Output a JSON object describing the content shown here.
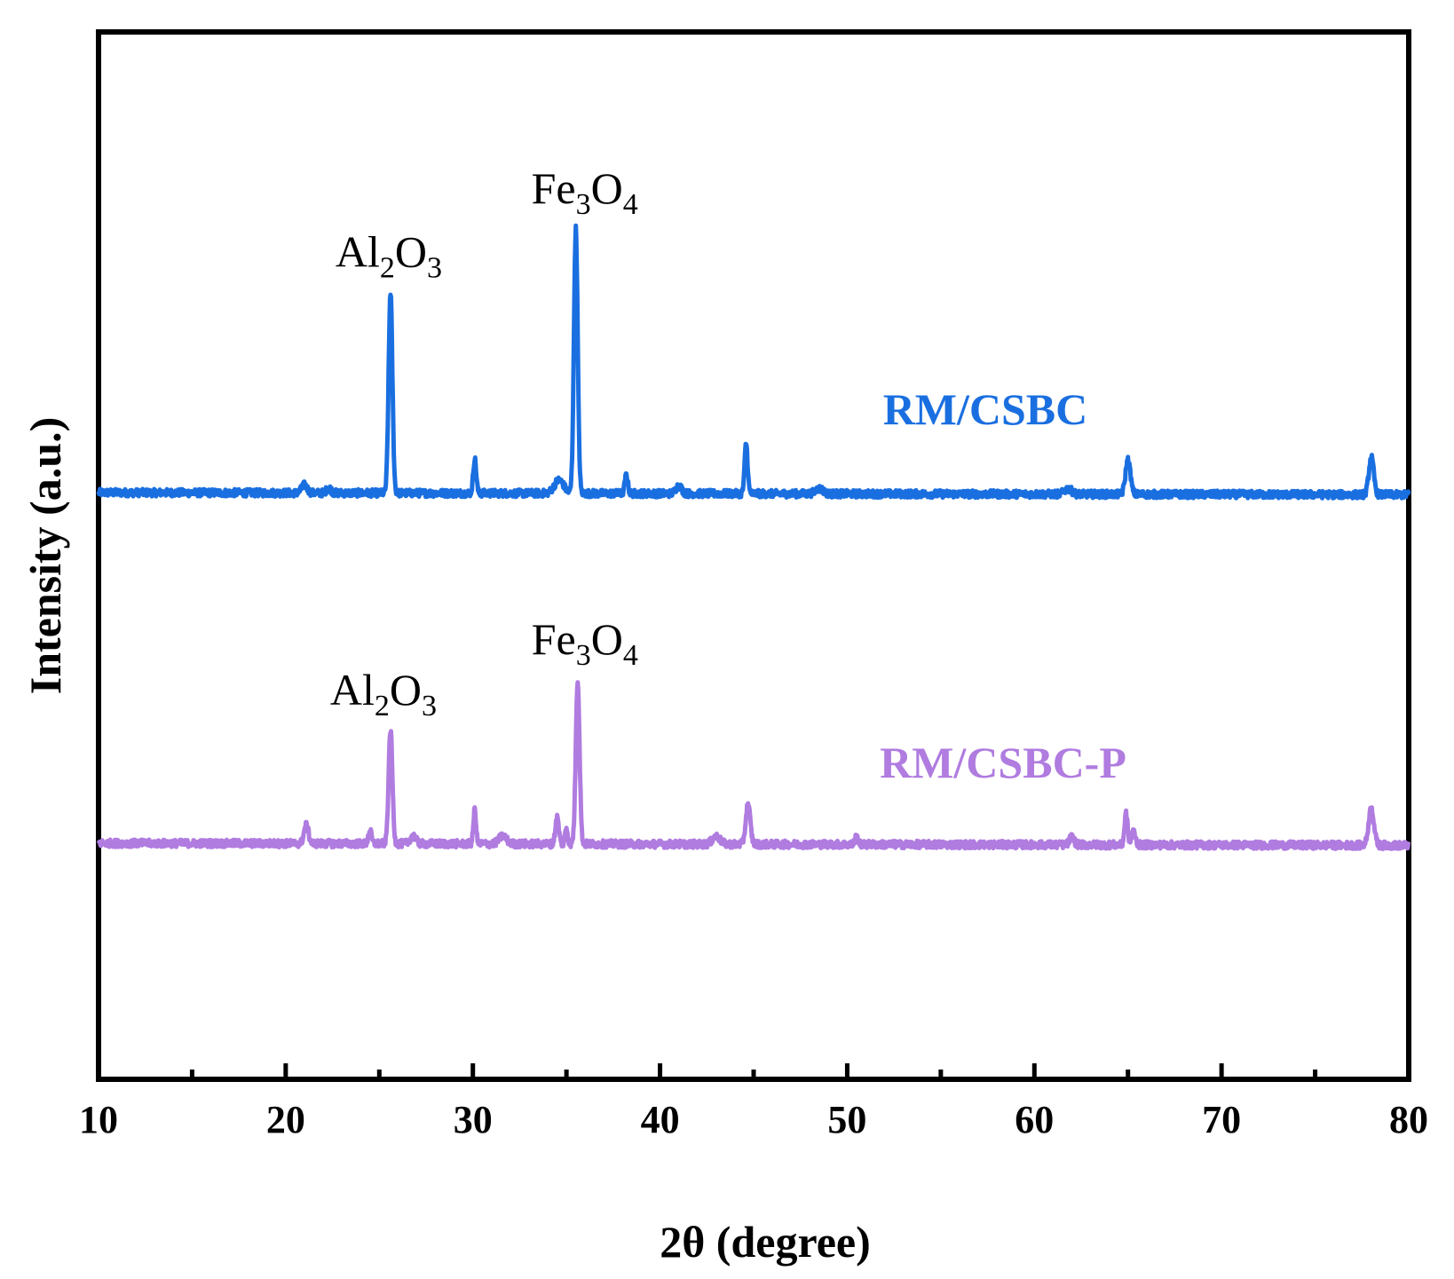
{
  "chart_data": {
    "type": "line",
    "xlabel": "2θ (degree)",
    "ylabel": "Intensity (a.u.)",
    "xlim": [
      10,
      80
    ],
    "x_ticks": [
      10,
      20,
      30,
      40,
      50,
      60,
      70,
      80
    ],
    "x_tick_labels": [
      "10",
      "20",
      "30",
      "40",
      "50",
      "60",
      "70",
      "80"
    ],
    "y_ticks_shown": false,
    "grid": false,
    "series": [
      {
        "name": "RM/CSBC",
        "color": "#1a6fe0",
        "baseline": 0.0,
        "peaks": [
          {
            "x": 21.0,
            "height": 0.03,
            "width": 0.15
          },
          {
            "x": 22.3,
            "height": 0.02,
            "width": 0.12
          },
          {
            "x": 25.6,
            "height": 0.76,
            "width": 0.1
          },
          {
            "x": 30.1,
            "height": 0.13,
            "width": 0.08
          },
          {
            "x": 34.6,
            "height": 0.05,
            "width": 0.25
          },
          {
            "x": 35.5,
            "height": 1.0,
            "width": 0.1
          },
          {
            "x": 38.2,
            "height": 0.07,
            "width": 0.08
          },
          {
            "x": 41.0,
            "height": 0.03,
            "width": 0.15
          },
          {
            "x": 44.6,
            "height": 0.19,
            "width": 0.08
          },
          {
            "x": 48.5,
            "height": 0.02,
            "width": 0.2
          },
          {
            "x": 61.8,
            "height": 0.02,
            "width": 0.2
          },
          {
            "x": 65.0,
            "height": 0.13,
            "width": 0.13
          },
          {
            "x": 78.0,
            "height": 0.14,
            "width": 0.13
          }
        ]
      },
      {
        "name": "RM/CSBC-P",
        "color": "#b07ce0",
        "baseline": 0.0,
        "peaks": [
          {
            "x": 21.1,
            "height": 0.07,
            "width": 0.12
          },
          {
            "x": 24.5,
            "height": 0.05,
            "width": 0.08
          },
          {
            "x": 25.6,
            "height": 0.43,
            "width": 0.1
          },
          {
            "x": 26.8,
            "height": 0.03,
            "width": 0.15
          },
          {
            "x": 30.1,
            "height": 0.13,
            "width": 0.07
          },
          {
            "x": 31.6,
            "height": 0.03,
            "width": 0.2
          },
          {
            "x": 34.5,
            "height": 0.1,
            "width": 0.09
          },
          {
            "x": 35.0,
            "height": 0.06,
            "width": 0.07
          },
          {
            "x": 35.6,
            "height": 0.62,
            "width": 0.1
          },
          {
            "x": 43.0,
            "height": 0.03,
            "width": 0.2
          },
          {
            "x": 44.7,
            "height": 0.15,
            "width": 0.12
          },
          {
            "x": 50.5,
            "height": 0.03,
            "width": 0.08
          },
          {
            "x": 62.0,
            "height": 0.03,
            "width": 0.12
          },
          {
            "x": 64.9,
            "height": 0.12,
            "width": 0.08
          },
          {
            "x": 65.3,
            "height": 0.05,
            "width": 0.1
          },
          {
            "x": 78.0,
            "height": 0.14,
            "width": 0.14
          }
        ]
      }
    ],
    "annotations": [
      {
        "series": "RM/CSBC",
        "x": 25.6,
        "base": "Al",
        "sub1": "2",
        "mid": "O",
        "sub2": "3"
      },
      {
        "series": "RM/CSBC",
        "x": 35.5,
        "base": "Fe",
        "sub1": "3",
        "mid": "O",
        "sub2": "4"
      },
      {
        "series": "RM/CSBC-P",
        "x": 25.6,
        "base": "Al",
        "sub1": "2",
        "mid": "O",
        "sub2": "3"
      },
      {
        "series": "RM/CSBC-P",
        "x": 35.6,
        "base": "Fe",
        "sub1": "3",
        "mid": "O",
        "sub2": "4"
      }
    ]
  }
}
